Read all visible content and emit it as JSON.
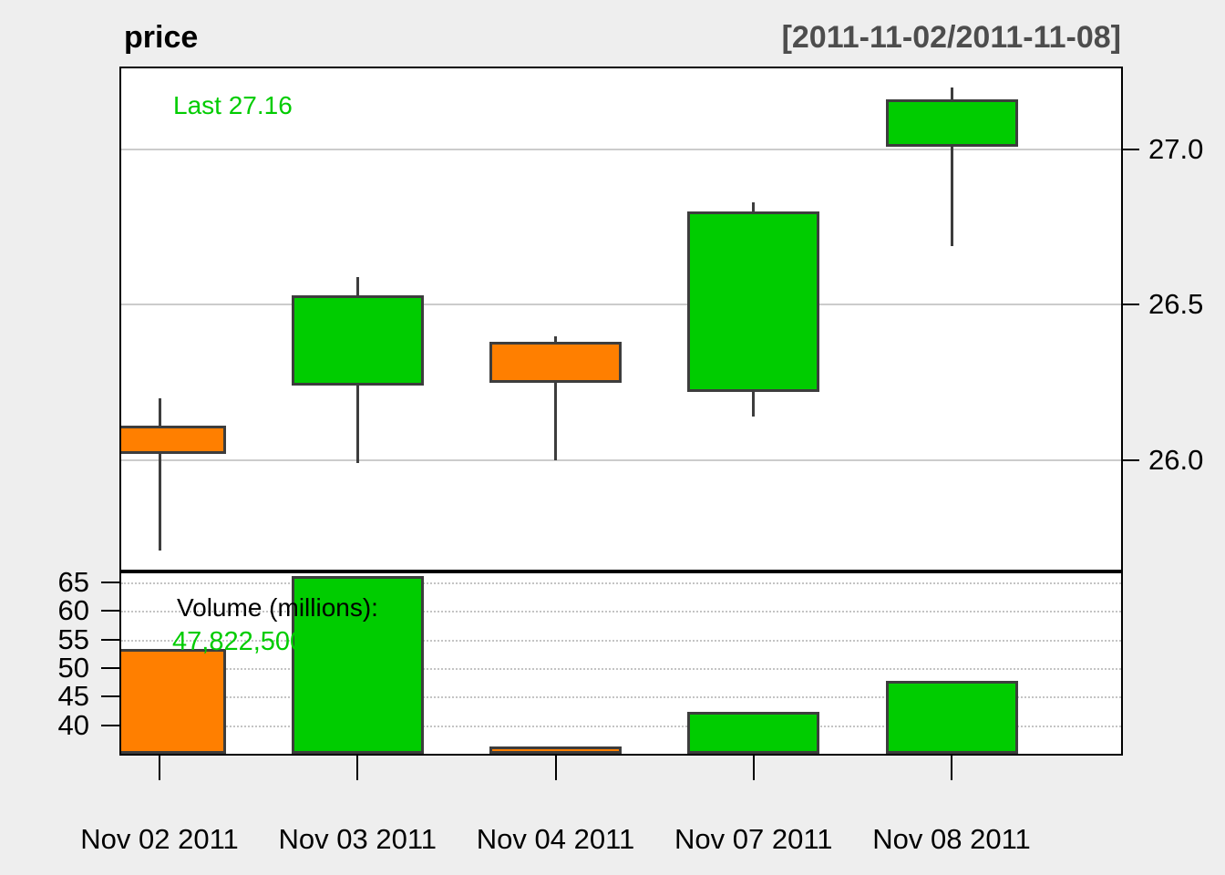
{
  "header": {
    "title": "price",
    "range": "[2011-11-02/2011-11-08]"
  },
  "annotations": {
    "last_price": "Last 27.16",
    "volume_title": "Volume (millions):",
    "last_volume": "47,822,500"
  },
  "colors": {
    "up": "#00CC00",
    "down": "#FF7F00",
    "candle_border": "#3D3D3D",
    "wick": "#3D3D3D",
    "grid_solid": "#CCCCCC",
    "grid_dotted": "#C4C4C4",
    "background": "#EEEEEE",
    "panel_background": "#FFFFFF",
    "range_text": "#4D4D4D",
    "last_price_text": "#00CC00",
    "last_volume_text": "#00CC00"
  },
  "chart_data": {
    "type": "candlestick+volume",
    "title": "price",
    "date_range": "[2011-11-02/2011-11-08]",
    "legend_position": "none",
    "grid": "on",
    "x_labels": [
      "Nov 02 2011",
      "Nov 03 2011",
      "Nov 04 2011",
      "Nov 07 2011",
      "Nov 08 2011"
    ],
    "price_axis": {
      "side": "right",
      "tick_labels": [
        "27.0",
        "26.5",
        "26.0"
      ],
      "tick_values": [
        27.0,
        26.5,
        26.0
      ],
      "min": 25.648,
      "max": 27.261
    },
    "volume_axis": {
      "side": "left",
      "tick_labels": [
        "65",
        "60",
        "55",
        "50",
        "45",
        "40"
      ],
      "tick_values": [
        65,
        60,
        55,
        50,
        45,
        40
      ],
      "min": 35.0,
      "max": 66.6
    },
    "series": [
      {
        "date": "Nov 02 2011",
        "open": 26.11,
        "high": 26.2,
        "low": 25.71,
        "close": 26.02,
        "volume_millions": 53.4,
        "direction": "down"
      },
      {
        "date": "Nov 03 2011",
        "open": 26.24,
        "high": 26.59,
        "low": 25.99,
        "close": 26.53,
        "volume_millions": 66.1,
        "direction": "up"
      },
      {
        "date": "Nov 04 2011",
        "open": 26.38,
        "high": 26.4,
        "low": 26.0,
        "close": 26.25,
        "volume_millions": 36.3,
        "direction": "down"
      },
      {
        "date": "Nov 07 2011",
        "open": 26.22,
        "high": 26.83,
        "low": 26.14,
        "close": 26.8,
        "volume_millions": 42.4,
        "direction": "up"
      },
      {
        "date": "Nov 08 2011",
        "open": 27.01,
        "high": 27.2,
        "low": 26.69,
        "close": 27.16,
        "volume_millions": 47.8,
        "direction": "up"
      }
    ]
  }
}
